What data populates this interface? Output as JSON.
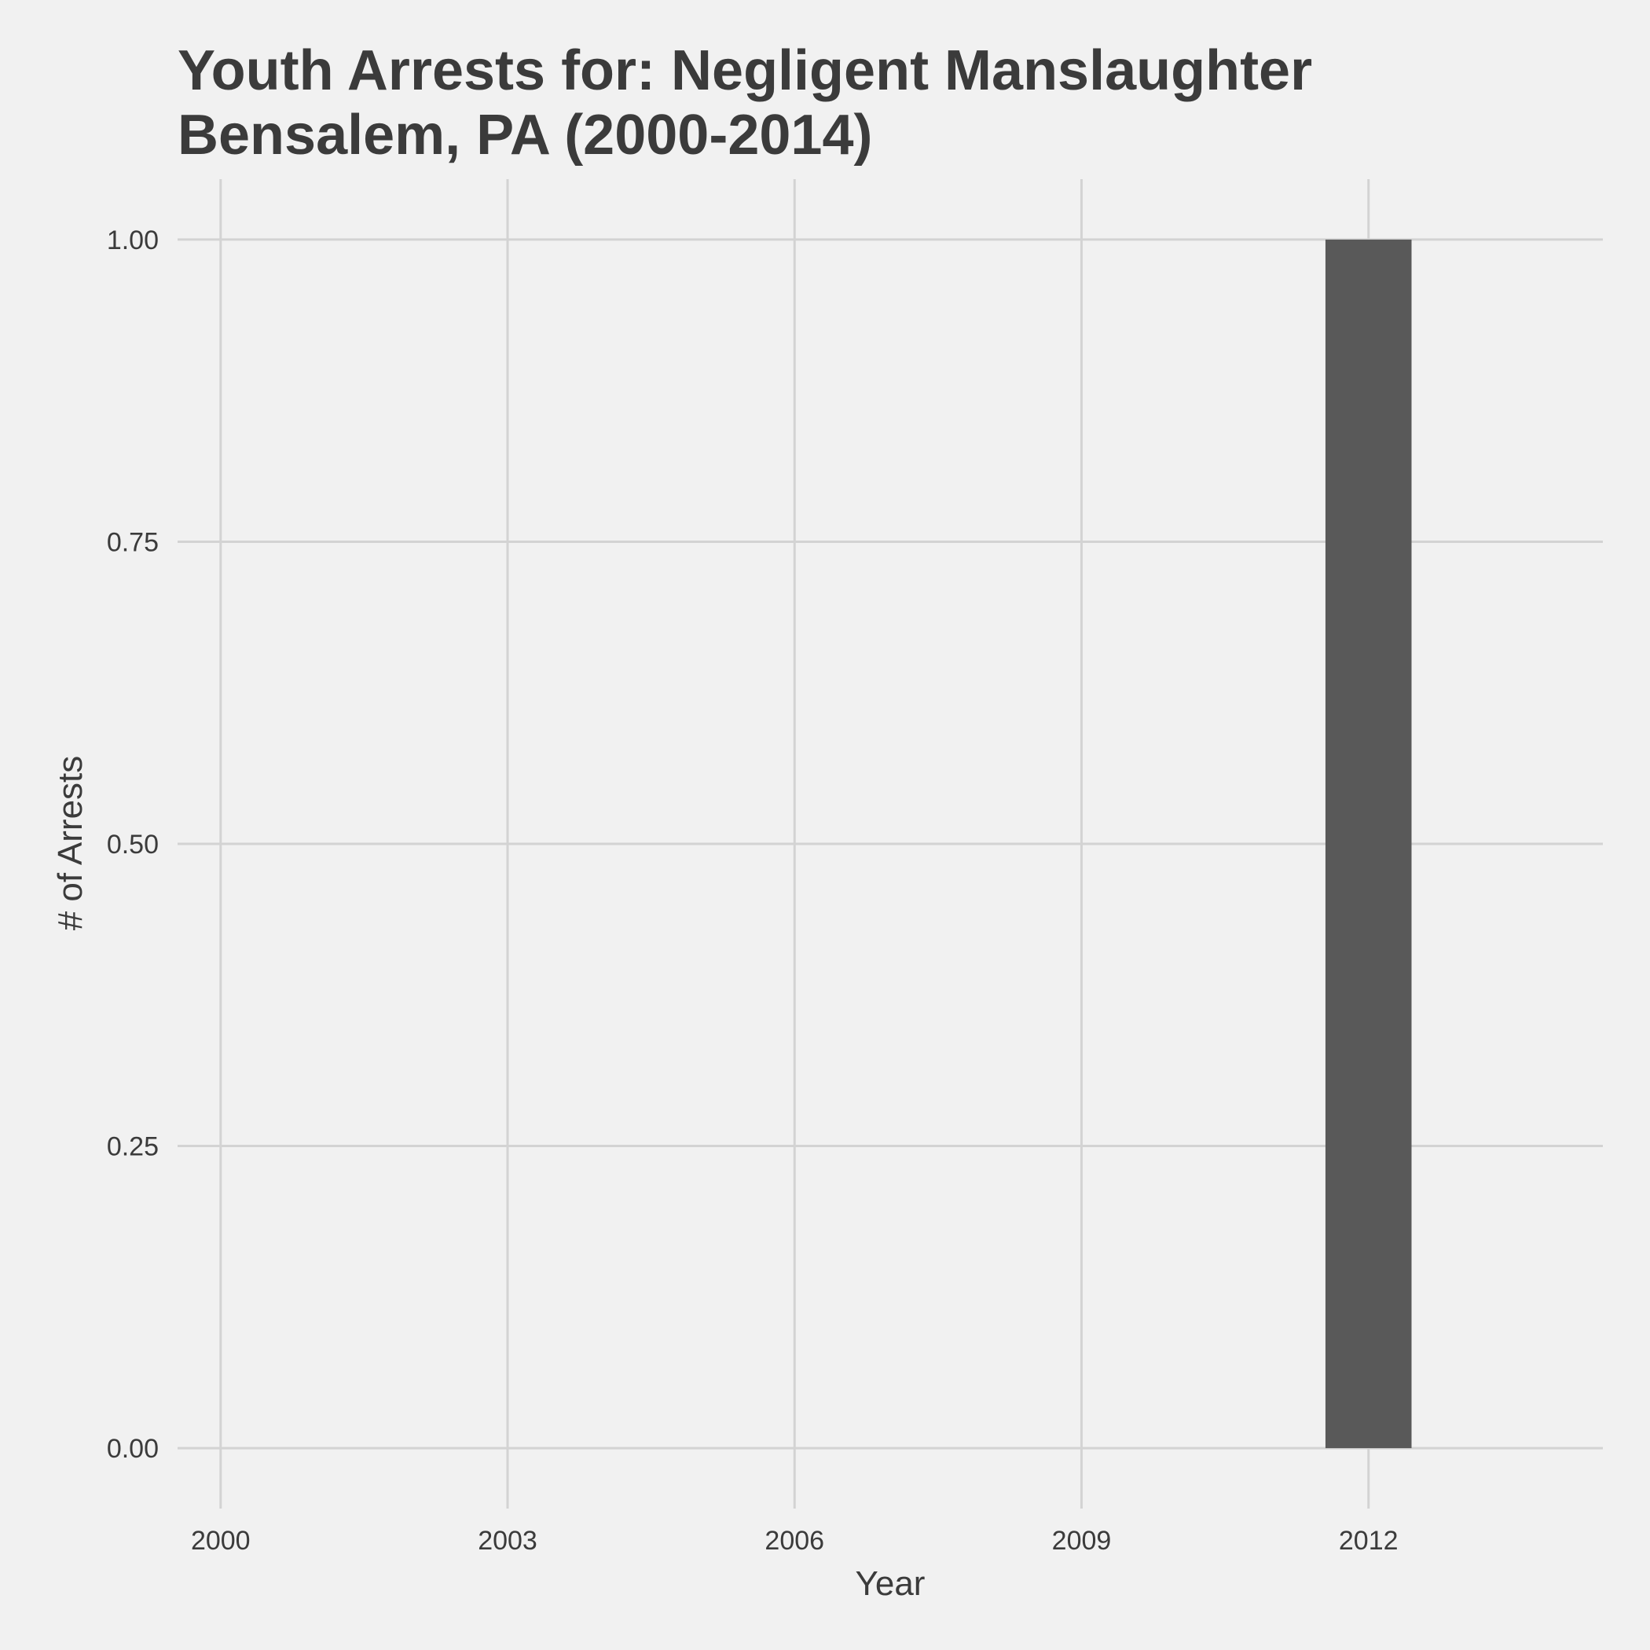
{
  "chart_data": {
    "type": "bar",
    "title_lines": [
      "Youth Arrests for: Negligent Manslaughter",
      "Bensalem, PA (2000-2014)"
    ],
    "xlabel": "Year",
    "ylabel": "# of Arrests",
    "x": [
      2012
    ],
    "values": [
      1
    ],
    "bar_color": "#595959",
    "x_ticks": [
      "2000",
      "2003",
      "2006",
      "2009",
      "2012"
    ],
    "y_ticks": [
      "0.00",
      "0.25",
      "0.50",
      "0.75",
      "1.00"
    ],
    "xlim": [
      1999.55,
      2014.45
    ],
    "ylim": [
      -0.05,
      1.05
    ],
    "grid": true,
    "background": "#f1f1f1",
    "gridline_color": "#d3d3d3",
    "text_color": "#3b3b3b"
  }
}
